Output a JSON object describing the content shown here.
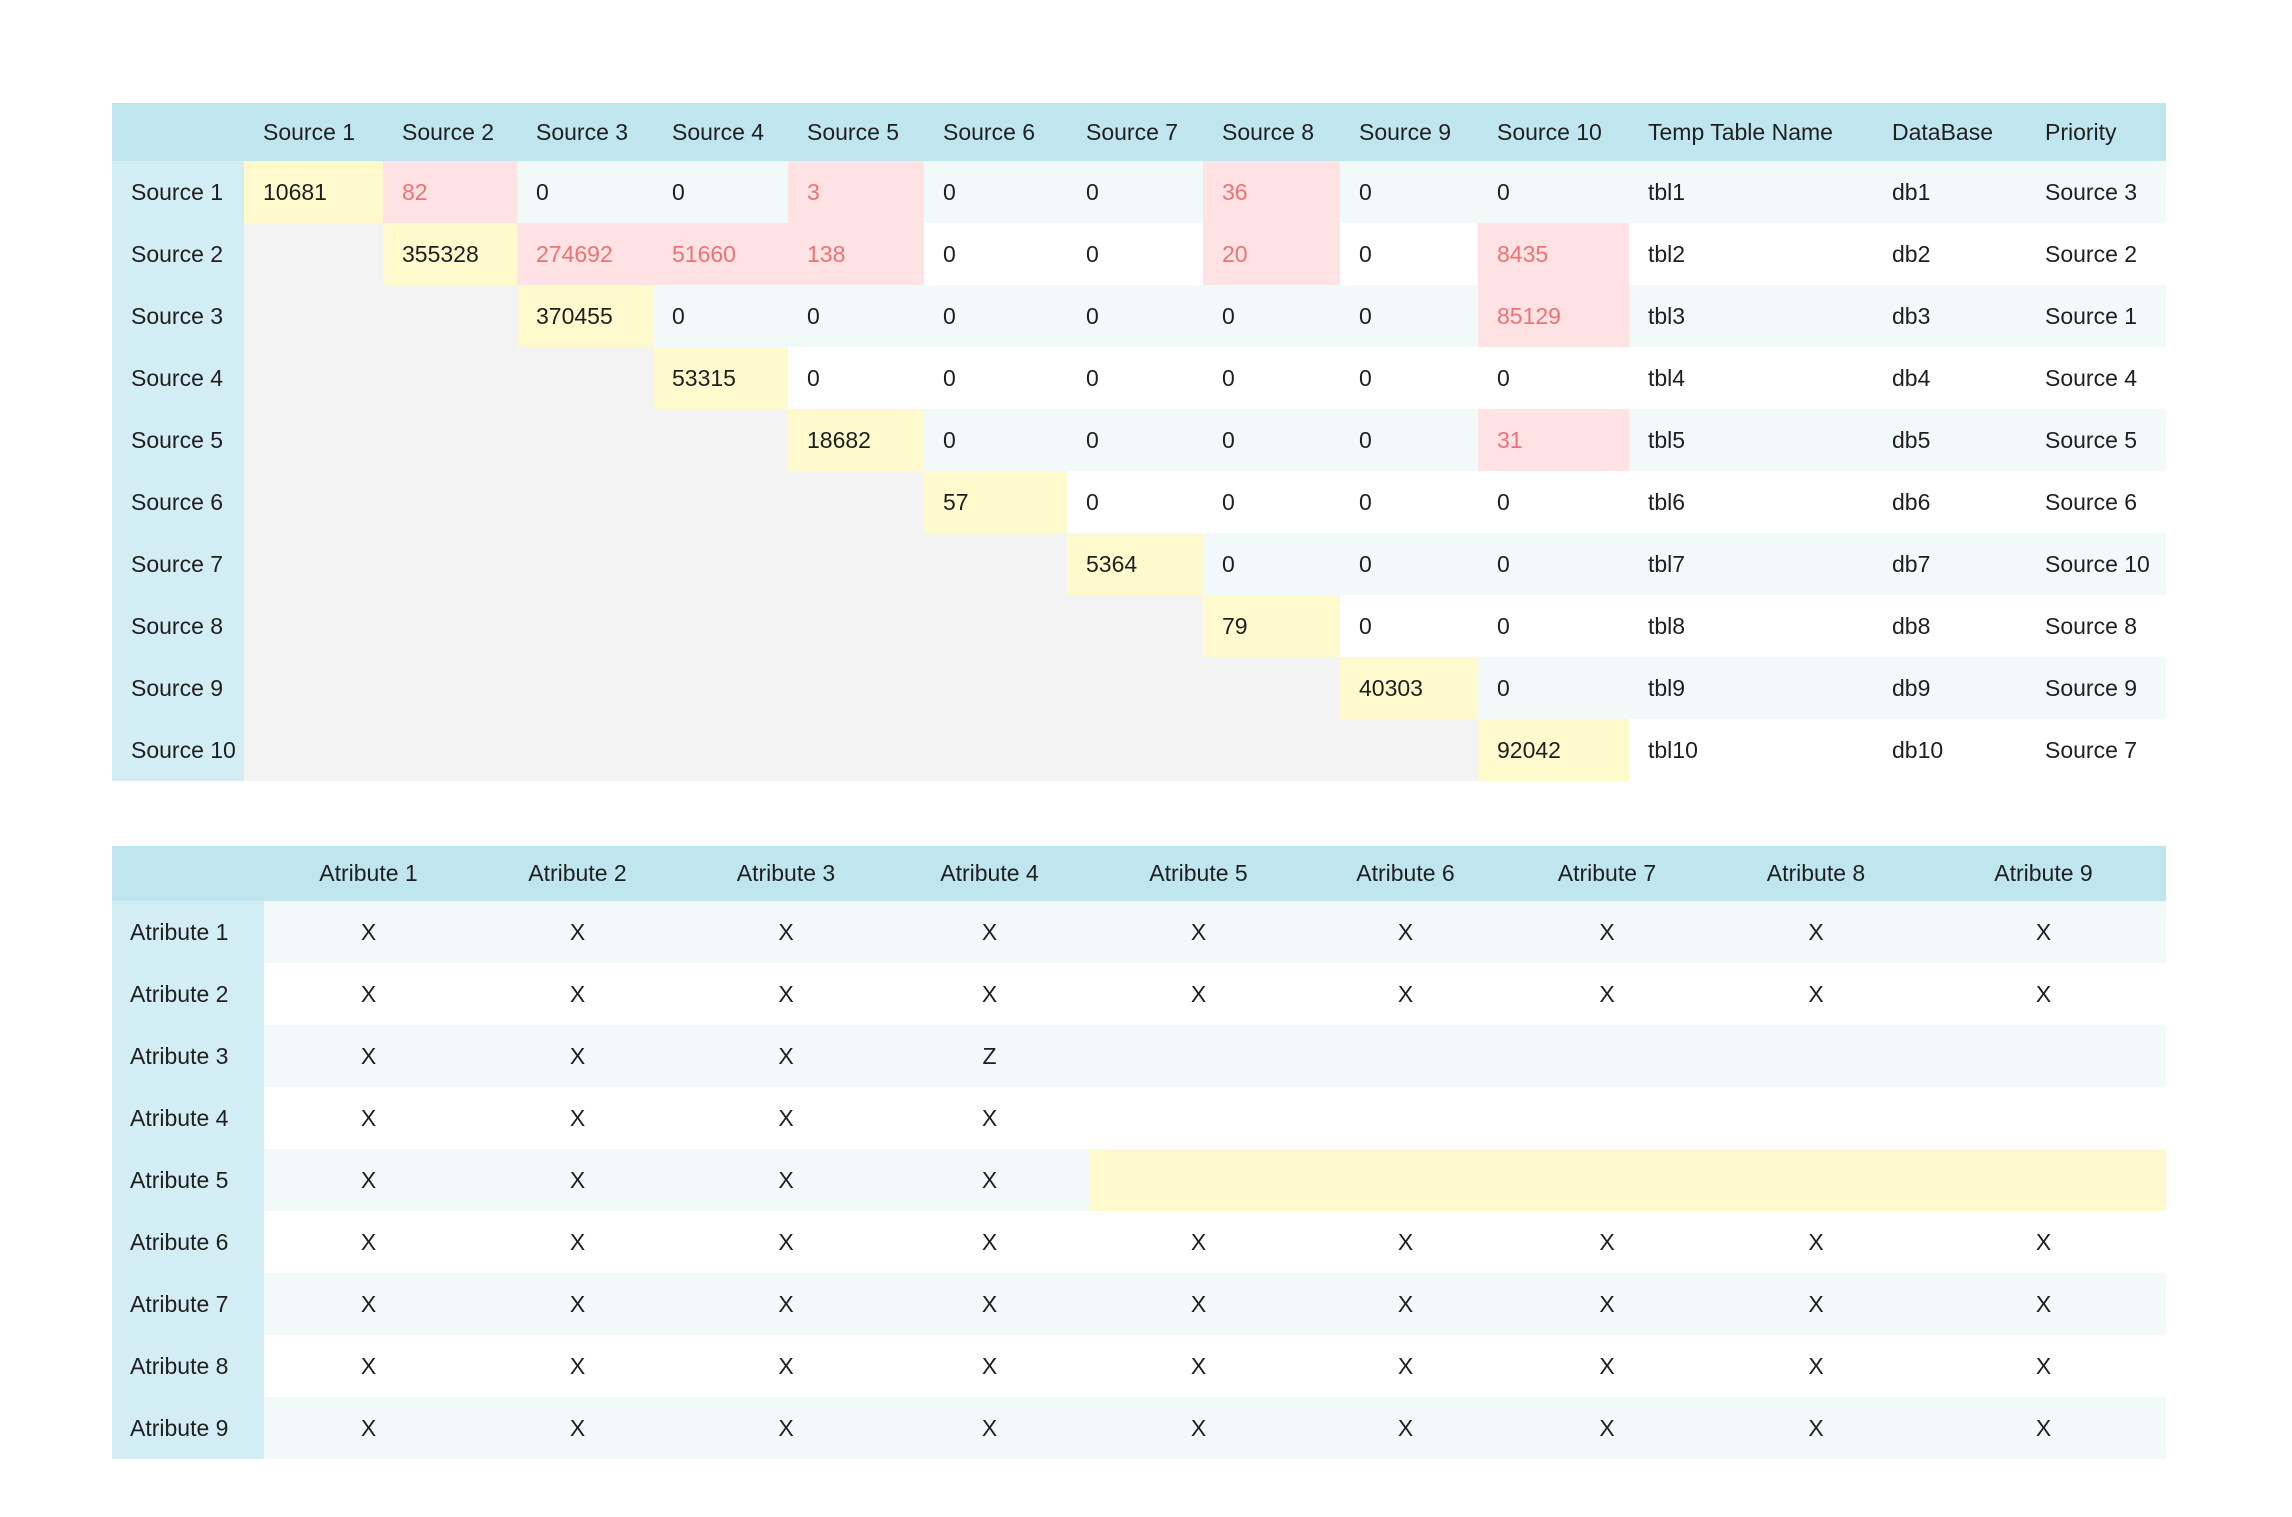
{
  "source_table": {
    "columns": [
      "",
      "Source 1",
      "Source 2",
      "Source 3",
      "Source 4",
      "Source 5",
      "Source 6",
      "Source 7",
      "Source 8",
      "Source 9",
      "Source 10",
      "Temp Table Name",
      "DataBase",
      "Priority"
    ],
    "rows": [
      {
        "label": "Source 1",
        "cells": [
          "10681",
          "82",
          "0",
          "0",
          "3",
          "0",
          "0",
          "36",
          "0",
          "0"
        ],
        "table": "tbl1",
        "db": "db1",
        "priority": "Source 3"
      },
      {
        "label": "Source 2",
        "cells": [
          "",
          "355328",
          "274692",
          "51660",
          "138",
          "0",
          "0",
          "20",
          "0",
          "8435"
        ],
        "table": "tbl2",
        "db": "db2",
        "priority": "Source 2"
      },
      {
        "label": "Source 3",
        "cells": [
          "",
          "",
          "370455",
          "0",
          "0",
          "0",
          "0",
          "0",
          "0",
          "85129"
        ],
        "table": "tbl3",
        "db": "db3",
        "priority": "Source 1"
      },
      {
        "label": "Source 4",
        "cells": [
          "",
          "",
          "",
          "53315",
          "0",
          "0",
          "0",
          "0",
          "0",
          "0"
        ],
        "table": "tbl4",
        "db": "db4",
        "priority": "Source 4"
      },
      {
        "label": "Source 5",
        "cells": [
          "",
          "",
          "",
          "",
          "18682",
          "0",
          "0",
          "0",
          "0",
          "31"
        ],
        "table": "tbl5",
        "db": "db5",
        "priority": "Source 5"
      },
      {
        "label": "Source 6",
        "cells": [
          "",
          "",
          "",
          "",
          "",
          "57",
          "0",
          "0",
          "0",
          "0"
        ],
        "table": "tbl6",
        "db": "db6",
        "priority": "Source 6"
      },
      {
        "label": "Source 7",
        "cells": [
          "",
          "",
          "",
          "",
          "",
          "",
          "5364",
          "0",
          "0",
          "0"
        ],
        "table": "tbl7",
        "db": "db7",
        "priority": "Source 10"
      },
      {
        "label": "Source 8",
        "cells": [
          "",
          "",
          "",
          "",
          "",
          "",
          "",
          "79",
          "0",
          "0"
        ],
        "table": "tbl8",
        "db": "db8",
        "priority": "Source 8"
      },
      {
        "label": "Source 9",
        "cells": [
          "",
          "",
          "",
          "",
          "",
          "",
          "",
          "",
          "40303",
          "0"
        ],
        "table": "tbl9",
        "db": "db9",
        "priority": "Source 9"
      },
      {
        "label": "Source 10",
        "cells": [
          "",
          "",
          "",
          "",
          "",
          "",
          "",
          "",
          "",
          "92042"
        ],
        "table": "tbl10",
        "db": "db10",
        "priority": "Source 7"
      }
    ],
    "highlight_colors": {
      "diagonal": "#fffacd",
      "overlap": "#ffe3e4",
      "overlap_text": "#ee7273",
      "header": "#bfe6ef"
    }
  },
  "attribute_table": {
    "columns": [
      "",
      "Atribute 1",
      "Atribute 2",
      "Atribute 3",
      "Atribute 4",
      "Atribute 5",
      "Atribute 6",
      "Atribute 7",
      "Atribute 8",
      "Atribute 9"
    ],
    "rows": [
      {
        "label": "Atribute 1",
        "cells": [
          "X",
          "X",
          "X",
          "X",
          "X",
          "X",
          "X",
          "X",
          "X"
        ]
      },
      {
        "label": "Atribute 2",
        "cells": [
          "X",
          "X",
          "X",
          "X",
          "X",
          "X",
          "X",
          "X",
          "X"
        ]
      },
      {
        "label": "Atribute 3",
        "cells": [
          "X",
          "X",
          "X",
          "Z",
          "",
          "",
          "",
          "",
          ""
        ]
      },
      {
        "label": "Atribute 4",
        "cells": [
          "X",
          "X",
          "X",
          "X",
          "",
          "",
          "",
          "",
          ""
        ]
      },
      {
        "label": "Atribute 5",
        "cells": [
          "X",
          "X",
          "X",
          "X",
          "",
          "",
          "",
          "",
          ""
        ],
        "highlight_from": 4
      },
      {
        "label": "Atribute 6",
        "cells": [
          "X",
          "X",
          "X",
          "X",
          "X",
          "X",
          "X",
          "X",
          "X"
        ]
      },
      {
        "label": "Atribute 7",
        "cells": [
          "X",
          "X",
          "X",
          "X",
          "X",
          "X",
          "X",
          "X",
          "X"
        ]
      },
      {
        "label": "Atribute 8",
        "cells": [
          "X",
          "X",
          "X",
          "X",
          "X",
          "X",
          "X",
          "X",
          "X"
        ]
      },
      {
        "label": "Atribute 9",
        "cells": [
          "X",
          "X",
          "X",
          "X",
          "X",
          "X",
          "X",
          "X",
          "X"
        ]
      }
    ]
  }
}
